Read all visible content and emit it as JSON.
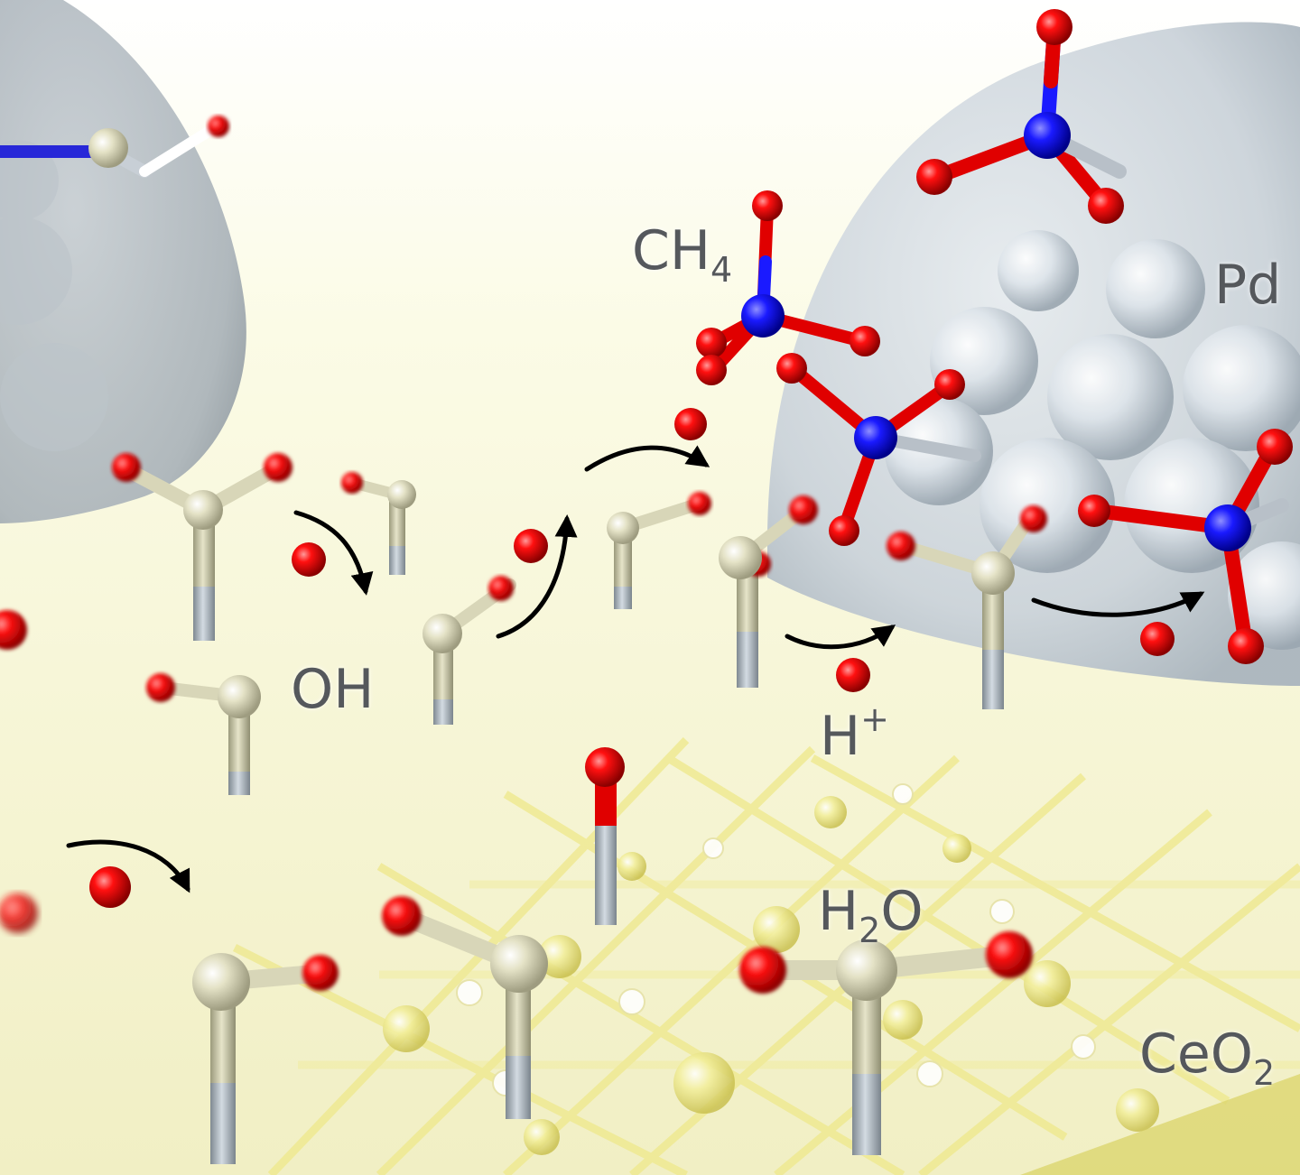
{
  "labels": {
    "ch4": {
      "main": "CH",
      "sub": "4"
    },
    "pd": {
      "main": "Pd"
    },
    "oh": {
      "main": "OH"
    },
    "hplus": {
      "main": "H",
      "sup": "+"
    },
    "h2o": {
      "main": "H",
      "sub": "2",
      "tail": "O"
    },
    "ceo2": {
      "main": "CeO",
      "sub": "2"
    }
  },
  "colors": {
    "oxygen": "#e00000",
    "nitrogen_center": "#1a1aff",
    "hydroxyl_ball": "#d8d6b8",
    "stick": "#c9c7a4",
    "stick_base": "#a8b0b8",
    "pd_dome": "#c9d1d8",
    "support": "#f2ee8a",
    "arrow": "#000000",
    "label": "#55585c"
  }
}
